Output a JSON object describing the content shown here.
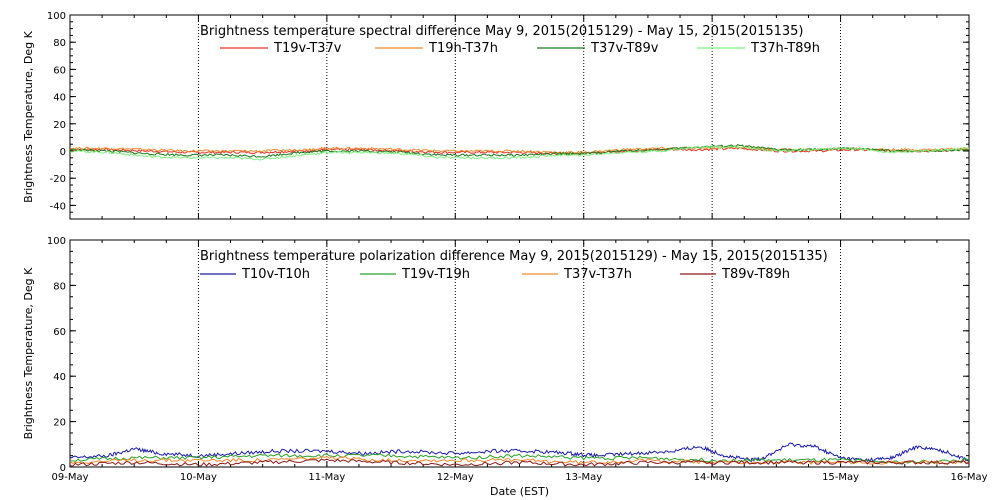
{
  "chart_data": [
    {
      "type": "line",
      "title": "Brightness temperature spectral difference     May  9, 2015(2015129) - May 15, 2015(2015135)",
      "ylabel": "Brightness Temperature, Deg K",
      "xlabel": "",
      "ylim": [
        -50,
        100
      ],
      "yticks": [
        -40,
        -20,
        0,
        20,
        40,
        60,
        80,
        100
      ],
      "xlim": [
        0,
        7
      ],
      "x_tick_labels": [
        "09-May",
        "10-May",
        "11-May",
        "12-May",
        "13-May",
        "14-May",
        "15-May",
        "16-May"
      ],
      "grid": "vertical dotted at day boundaries",
      "legend": "top-center",
      "series": [
        {
          "name": "T19v-T37v",
          "color": "#e8302a",
          "x": [
            0,
            0.3,
            0.6,
            0.9,
            1.2,
            1.5,
            1.8,
            2.0,
            2.3,
            2.6,
            2.9,
            3.2,
            3.5,
            3.8,
            4.0,
            4.3,
            4.6,
            4.9,
            5.2,
            5.5,
            5.8,
            6.1,
            6.4,
            6.7,
            7.0
          ],
          "y": [
            1,
            1,
            0,
            -1,
            -1,
            -1,
            0,
            1,
            1,
            0,
            -1,
            -1,
            -1,
            -2,
            -2,
            0,
            1,
            1,
            2,
            0,
            0,
            1,
            0,
            0,
            1
          ]
        },
        {
          "name": "T19h-T37h",
          "color": "#f0892b",
          "x": [
            0,
            0.3,
            0.6,
            0.9,
            1.2,
            1.5,
            1.8,
            2.0,
            2.3,
            2.6,
            2.9,
            3.2,
            3.5,
            3.8,
            4.0,
            4.3,
            4.6,
            4.9,
            5.2,
            5.5,
            5.8,
            6.1,
            6.4,
            6.7,
            7.0
          ],
          "y": [
            2,
            2,
            1,
            0,
            0,
            0,
            1,
            2,
            2,
            1,
            0,
            0,
            0,
            -1,
            -1,
            1,
            2,
            2,
            3,
            1,
            1,
            2,
            1,
            1,
            2
          ]
        },
        {
          "name": "T37v-T89v",
          "color": "#1a7a1a",
          "x": [
            0,
            0.3,
            0.6,
            0.9,
            1.2,
            1.5,
            1.8,
            2.0,
            2.3,
            2.6,
            2.9,
            3.2,
            3.5,
            3.8,
            4.0,
            4.3,
            4.6,
            4.9,
            5.2,
            5.5,
            5.8,
            6.1,
            6.4,
            6.7,
            7.0
          ],
          "y": [
            1,
            0,
            -2,
            -3,
            -3,
            -4,
            -1,
            0,
            0,
            -1,
            -3,
            -3,
            -3,
            -2,
            -2,
            0,
            1,
            3,
            4,
            1,
            1,
            2,
            0,
            0,
            1
          ]
        },
        {
          "name": "T37h-T89h",
          "color": "#7ef07e",
          "x": [
            0,
            0.3,
            0.6,
            0.9,
            1.2,
            1.5,
            1.8,
            2.0,
            2.3,
            2.6,
            2.9,
            3.2,
            3.5,
            3.8,
            4.0,
            4.3,
            4.6,
            4.9,
            5.2,
            5.5,
            5.8,
            6.1,
            6.4,
            6.7,
            7.0
          ],
          "y": [
            0,
            -1,
            -4,
            -5,
            -5,
            -6,
            -3,
            -1,
            -1,
            -2,
            -5,
            -5,
            -5,
            -3,
            -3,
            -1,
            0,
            3,
            3,
            0,
            1,
            2,
            -1,
            0,
            2
          ]
        }
      ]
    },
    {
      "type": "line",
      "title": "Brightness temperature polarization difference    May  9, 2015(2015129) - May 15, 2015(2015135)",
      "ylabel": "Brightness Temperature, Deg K",
      "xlabel": "Date (EST)",
      "ylim": [
        0,
        100
      ],
      "yticks": [
        0,
        20,
        40,
        60,
        80,
        100
      ],
      "xlim": [
        0,
        7
      ],
      "x_tick_labels": [
        "09-May",
        "10-May",
        "11-May",
        "12-May",
        "13-May",
        "14-May",
        "15-May",
        "16-May"
      ],
      "grid": "vertical dotted at day boundaries",
      "legend": "top-center",
      "series": [
        {
          "name": "T10v-T10h",
          "color": "#1c1ca8",
          "x": [
            0,
            0.3,
            0.5,
            0.7,
            1.0,
            1.3,
            1.6,
            2.0,
            2.3,
            2.6,
            3.0,
            3.3,
            3.6,
            3.9,
            4.1,
            4.4,
            4.7,
            4.9,
            5.1,
            5.3,
            5.4,
            5.6,
            5.8,
            6.0,
            6.2,
            6.4,
            6.6,
            6.8,
            7.0
          ],
          "y": [
            4,
            5,
            8,
            6,
            5,
            6,
            7,
            7,
            6,
            7,
            6,
            7,
            7,
            6,
            5,
            6,
            7,
            9,
            5,
            3,
            4,
            10,
            9,
            4,
            3,
            4,
            9,
            7,
            3
          ]
        },
        {
          "name": "T19v-T19h",
          "color": "#2aa02a",
          "x": [
            0,
            0.5,
            1.0,
            1.5,
            2.0,
            2.5,
            3.0,
            3.5,
            4.0,
            4.5,
            5.0,
            5.5,
            6.0,
            6.5,
            7.0
          ],
          "y": [
            3,
            4,
            4,
            5,
            5,
            5,
            4,
            5,
            4,
            4,
            3,
            3,
            3,
            2,
            3
          ]
        },
        {
          "name": "T37v-T37h",
          "color": "#f0892b",
          "x": [
            0,
            0.5,
            1.0,
            1.5,
            2.0,
            2.5,
            3.0,
            3.5,
            4.0,
            4.5,
            5.0,
            5.5,
            6.0,
            6.5,
            7.0
          ],
          "y": [
            2,
            3,
            3,
            3,
            4,
            3,
            3,
            3,
            2,
            3,
            2,
            2,
            2,
            2,
            2
          ]
        },
        {
          "name": "T89v-T89h",
          "color": "#8b1a1a",
          "x": [
            0,
            0.5,
            1.0,
            1.5,
            2.0,
            2.5,
            3.0,
            3.5,
            4.0,
            4.5,
            5.0,
            5.5,
            6.0,
            6.5,
            7.0
          ],
          "y": [
            1,
            2,
            1,
            2,
            3,
            2,
            1,
            2,
            1,
            2,
            2,
            2,
            2,
            2,
            2
          ]
        }
      ]
    }
  ]
}
